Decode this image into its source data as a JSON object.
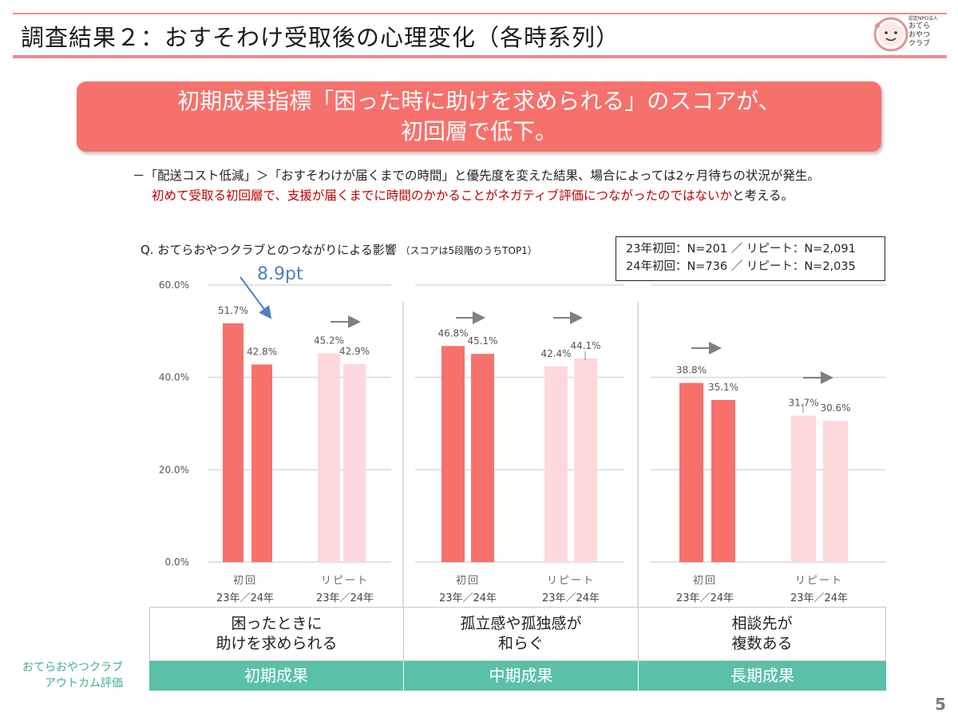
{
  "slide": {
    "title": "調査結果２：おすそわけ受取後の心理変化（各時系列）",
    "page_number": "5",
    "logo": {
      "line_small": "認定NPO法人",
      "line1": "おてら",
      "line2": "おやつ",
      "line3": "クラブ"
    }
  },
  "headline": {
    "line1": "初期成果指標「困った時に助けを求められる」のスコアが、",
    "line2": "初回層で低下。"
  },
  "notes": {
    "line1": "－「配送コスト低減」＞「おすそわけが届くまでの時間」と優先度を変えた結果、場合によっては2ヶ月待ちの状況が発生。",
    "line2_red": "初めて受取る初回層で、支援が届くまでに時間のかかることがネガティブ評価につながったのではないか",
    "line2_tail": "と考える。"
  },
  "question": {
    "text": "Q.  おてらおやつクラブとのつながりによる影響",
    "sub": "（スコアは5段階のうちTOP1）"
  },
  "sample_box": {
    "line1": "23年初回：N=201 ／ リピート：N=2,091",
    "line2": "24年初回：N=736 ／ リピート：N=2,035"
  },
  "outcome_label": {
    "line1": "おてらおやつクラブ",
    "line2": "アウトカム評価"
  },
  "categories": [
    {
      "line1": "困ったときに",
      "line2": "助けを求められる",
      "phase": "初期成果"
    },
    {
      "line1": "孤立感や孤独感が",
      "line2": "和らぐ",
      "phase": "中期成果"
    },
    {
      "line1": "相談先が",
      "line2": "複数ある",
      "phase": "長期成果"
    }
  ],
  "chart_data": {
    "type": "bar",
    "ylim": [
      0,
      60
    ],
    "yticks": [
      "0.0%",
      "20.0%",
      "40.0%",
      "60.0%"
    ],
    "ytick_values": [
      0,
      20,
      40,
      60
    ],
    "groups": [
      "初回",
      "リピート"
    ],
    "group_sublabel": "23年／24年",
    "series": [
      {
        "name": "初回 23年",
        "color": "#f6716c"
      },
      {
        "name": "初回 24年",
        "color": "#f6716c"
      },
      {
        "name": "リピート 23年",
        "color": "#fdd8dc"
      },
      {
        "name": "リピート 24年",
        "color": "#fdd8dc"
      }
    ],
    "panels": [
      {
        "category": "困ったときに助けを求められる",
        "values": {
          "初回": [
            51.7,
            42.8
          ],
          "リピート": [
            45.2,
            42.9
          ]
        },
        "labels": {
          "初回": [
            "51.7%",
            "42.8%"
          ],
          "リピート": [
            "45.2%",
            "42.9%"
          ]
        },
        "annotation": "8.9pt"
      },
      {
        "category": "孤立感や孤独感が和らぐ",
        "values": {
          "初回": [
            46.8,
            45.1
          ],
          "リピート": [
            42.4,
            44.1
          ]
        },
        "labels": {
          "初回": [
            "46.8%",
            "45.1%"
          ],
          "リピート": [
            "42.4%",
            "44.1%"
          ]
        }
      },
      {
        "category": "相談先が複数ある",
        "values": {
          "初回": [
            38.8,
            35.1
          ],
          "リピート": [
            31.7,
            30.6
          ]
        },
        "labels": {
          "初回": [
            "38.8%",
            "35.1%"
          ],
          "リピート": [
            "31.7%",
            "30.6%"
          ]
        }
      }
    ],
    "colors": {
      "accent": "#f6716c",
      "light": "#fdd8dc",
      "arrow_blue": "#4f81bd",
      "arrow_gray": "#808080",
      "phase_green": "#5bc0a8"
    }
  }
}
